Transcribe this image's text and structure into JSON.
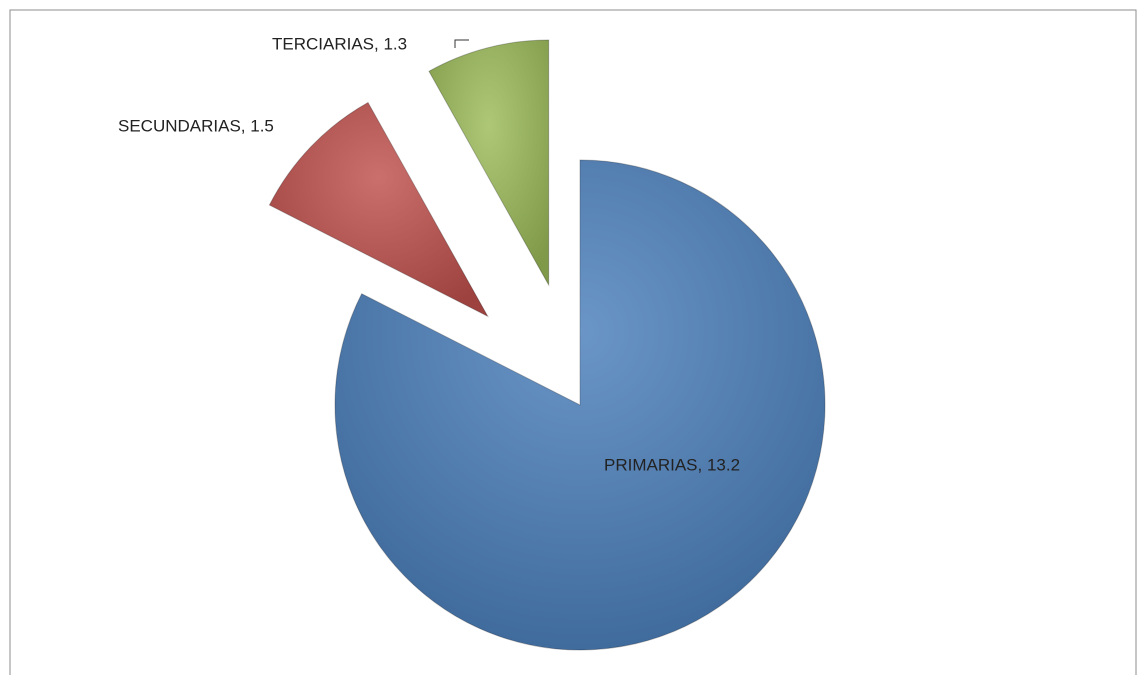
{
  "chart_data": {
    "type": "pie",
    "categories": [
      "PRIMARIAS",
      "SECUNDARIAS",
      "TERCIARIAS"
    ],
    "values": [
      13.2,
      1.5,
      1.3
    ],
    "value_labels": [
      "PRIMARIAS, 13.2",
      "SECUNDARIAS, 1.5",
      "TERCIARIAS, 1.3"
    ],
    "colors": [
      "#4a7ebb",
      "#c0504d",
      "#9bbb59"
    ]
  }
}
